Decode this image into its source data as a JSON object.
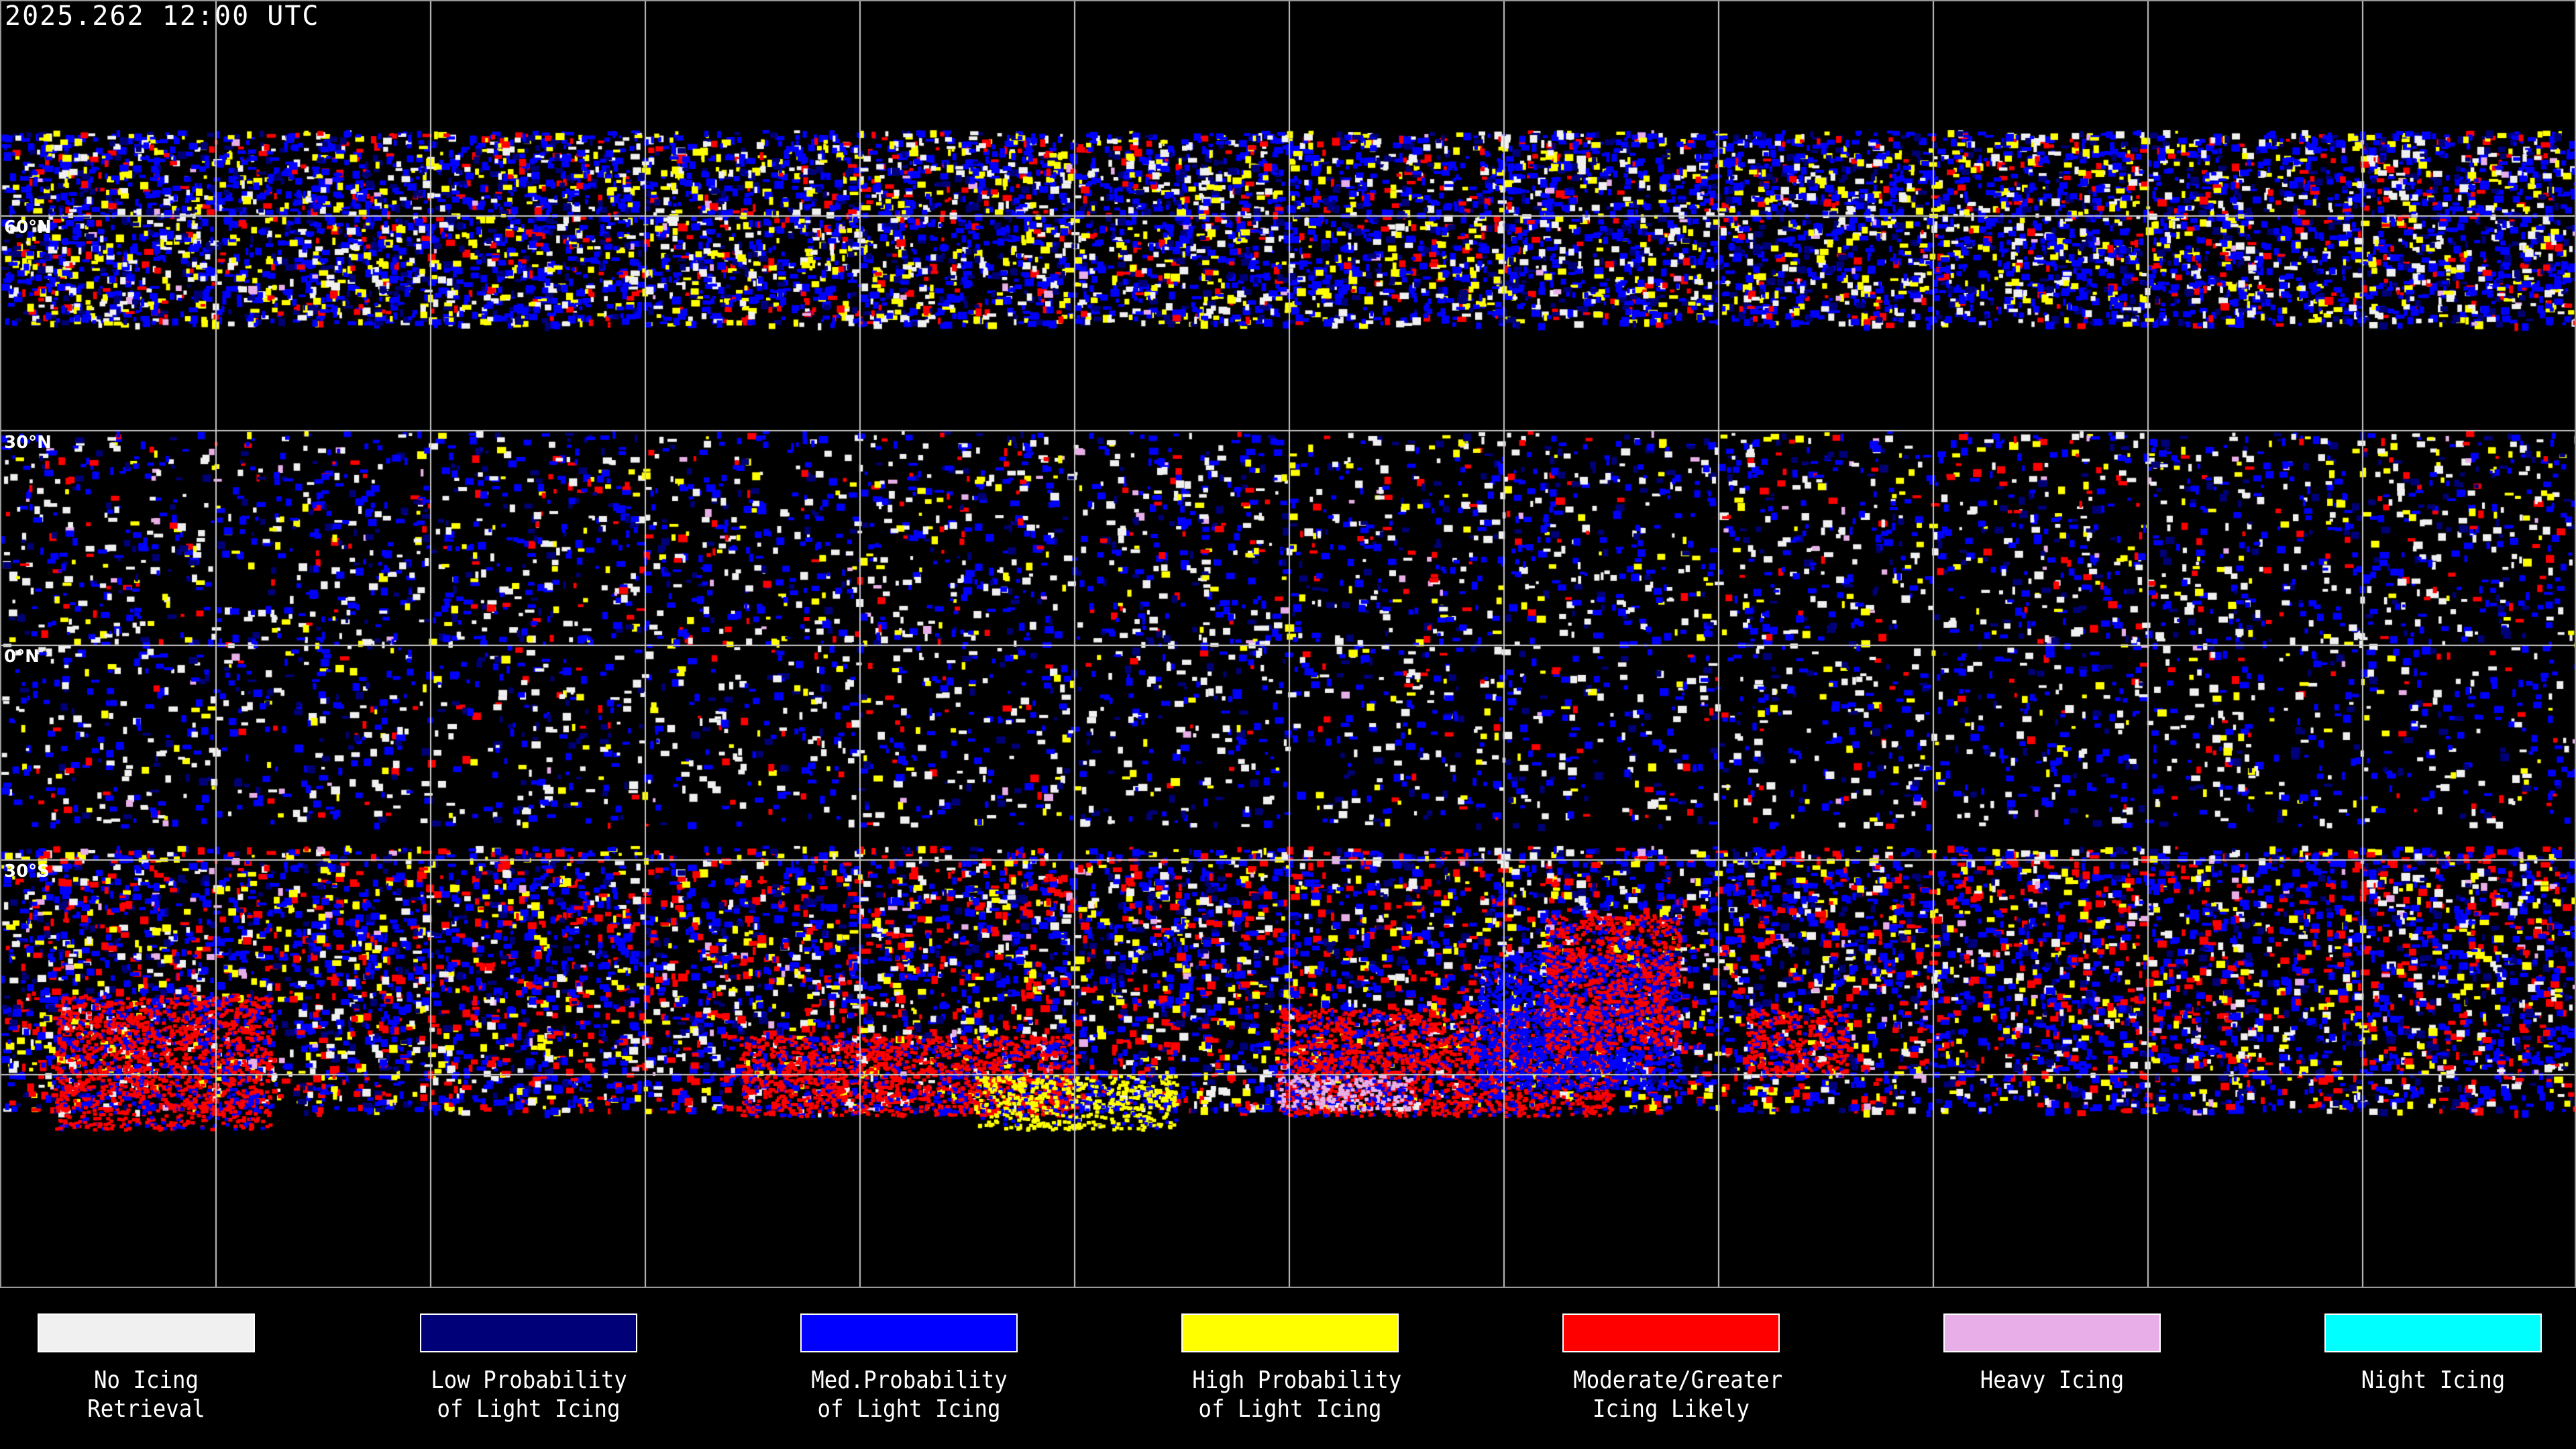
{
  "header": {
    "timestamp": "2025.262 12:00 UTC"
  },
  "map": {
    "projection": "equirectangular",
    "lat_labels": [
      "60°N",
      "30°N",
      "0°N",
      "30°S"
    ],
    "grid_spacing_degrees": 30,
    "background": "#000000",
    "coastline_color": "#ffffff"
  },
  "legend": [
    {
      "line1": "No Icing",
      "line2": "Retrieval",
      "color": "#f0f0f0"
    },
    {
      "line1": "Low Probability",
      "line2": "of Light Icing",
      "color": "#000078"
    },
    {
      "line1": "Med.Probability",
      "line2": "of Light Icing",
      "color": "#0000ff"
    },
    {
      "line1": "High Probability",
      "line2": "of Light Icing",
      "color": "#ffff00"
    },
    {
      "line1": "Moderate/Greater",
      "line2": "Icing Likely",
      "color": "#ff0000"
    },
    {
      "line1": "Heavy Icing",
      "line2": "",
      "color": "#e8aee8"
    },
    {
      "line1": "Night Icing",
      "line2": "",
      "color": "#00ffff"
    }
  ]
}
